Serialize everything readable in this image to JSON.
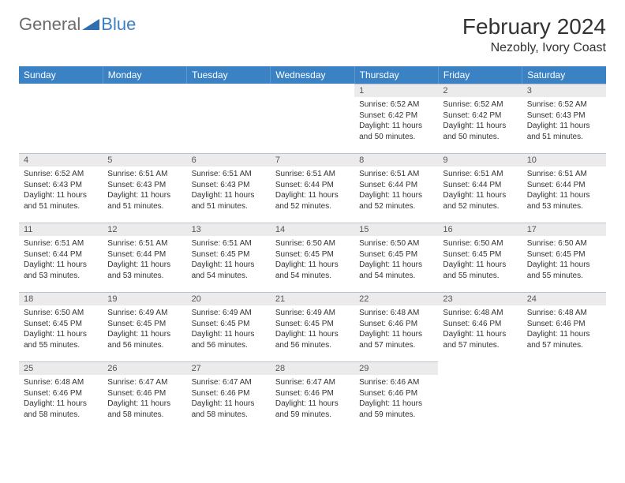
{
  "brand": {
    "text1": "General",
    "text2": "Blue"
  },
  "title": "February 2024",
  "location": "Nezobly, Ivory Coast",
  "colors": {
    "header_bg": "#3b82c4",
    "header_text": "#ffffff",
    "daynum_bg": "#ebebeb",
    "border": "#b8c4d0",
    "logo_gray": "#6b6b6b",
    "logo_blue": "#3b7fc4"
  },
  "weekdays": [
    "Sunday",
    "Monday",
    "Tuesday",
    "Wednesday",
    "Thursday",
    "Friday",
    "Saturday"
  ],
  "weeks": [
    [
      null,
      null,
      null,
      null,
      {
        "n": "1",
        "sr": "6:52 AM",
        "ss": "6:42 PM",
        "dl": "11 hours and 50 minutes."
      },
      {
        "n": "2",
        "sr": "6:52 AM",
        "ss": "6:42 PM",
        "dl": "11 hours and 50 minutes."
      },
      {
        "n": "3",
        "sr": "6:52 AM",
        "ss": "6:43 PM",
        "dl": "11 hours and 51 minutes."
      }
    ],
    [
      {
        "n": "4",
        "sr": "6:52 AM",
        "ss": "6:43 PM",
        "dl": "11 hours and 51 minutes."
      },
      {
        "n": "5",
        "sr": "6:51 AM",
        "ss": "6:43 PM",
        "dl": "11 hours and 51 minutes."
      },
      {
        "n": "6",
        "sr": "6:51 AM",
        "ss": "6:43 PM",
        "dl": "11 hours and 51 minutes."
      },
      {
        "n": "7",
        "sr": "6:51 AM",
        "ss": "6:44 PM",
        "dl": "11 hours and 52 minutes."
      },
      {
        "n": "8",
        "sr": "6:51 AM",
        "ss": "6:44 PM",
        "dl": "11 hours and 52 minutes."
      },
      {
        "n": "9",
        "sr": "6:51 AM",
        "ss": "6:44 PM",
        "dl": "11 hours and 52 minutes."
      },
      {
        "n": "10",
        "sr": "6:51 AM",
        "ss": "6:44 PM",
        "dl": "11 hours and 53 minutes."
      }
    ],
    [
      {
        "n": "11",
        "sr": "6:51 AM",
        "ss": "6:44 PM",
        "dl": "11 hours and 53 minutes."
      },
      {
        "n": "12",
        "sr": "6:51 AM",
        "ss": "6:44 PM",
        "dl": "11 hours and 53 minutes."
      },
      {
        "n": "13",
        "sr": "6:51 AM",
        "ss": "6:45 PM",
        "dl": "11 hours and 54 minutes."
      },
      {
        "n": "14",
        "sr": "6:50 AM",
        "ss": "6:45 PM",
        "dl": "11 hours and 54 minutes."
      },
      {
        "n": "15",
        "sr": "6:50 AM",
        "ss": "6:45 PM",
        "dl": "11 hours and 54 minutes."
      },
      {
        "n": "16",
        "sr": "6:50 AM",
        "ss": "6:45 PM",
        "dl": "11 hours and 55 minutes."
      },
      {
        "n": "17",
        "sr": "6:50 AM",
        "ss": "6:45 PM",
        "dl": "11 hours and 55 minutes."
      }
    ],
    [
      {
        "n": "18",
        "sr": "6:50 AM",
        "ss": "6:45 PM",
        "dl": "11 hours and 55 minutes."
      },
      {
        "n": "19",
        "sr": "6:49 AM",
        "ss": "6:45 PM",
        "dl": "11 hours and 56 minutes."
      },
      {
        "n": "20",
        "sr": "6:49 AM",
        "ss": "6:45 PM",
        "dl": "11 hours and 56 minutes."
      },
      {
        "n": "21",
        "sr": "6:49 AM",
        "ss": "6:45 PM",
        "dl": "11 hours and 56 minutes."
      },
      {
        "n": "22",
        "sr": "6:48 AM",
        "ss": "6:46 PM",
        "dl": "11 hours and 57 minutes."
      },
      {
        "n": "23",
        "sr": "6:48 AM",
        "ss": "6:46 PM",
        "dl": "11 hours and 57 minutes."
      },
      {
        "n": "24",
        "sr": "6:48 AM",
        "ss": "6:46 PM",
        "dl": "11 hours and 57 minutes."
      }
    ],
    [
      {
        "n": "25",
        "sr": "6:48 AM",
        "ss": "6:46 PM",
        "dl": "11 hours and 58 minutes."
      },
      {
        "n": "26",
        "sr": "6:47 AM",
        "ss": "6:46 PM",
        "dl": "11 hours and 58 minutes."
      },
      {
        "n": "27",
        "sr": "6:47 AM",
        "ss": "6:46 PM",
        "dl": "11 hours and 58 minutes."
      },
      {
        "n": "28",
        "sr": "6:47 AM",
        "ss": "6:46 PM",
        "dl": "11 hours and 59 minutes."
      },
      {
        "n": "29",
        "sr": "6:46 AM",
        "ss": "6:46 PM",
        "dl": "11 hours and 59 minutes."
      },
      null,
      null
    ]
  ],
  "labels": {
    "sunrise": "Sunrise:",
    "sunset": "Sunset:",
    "daylight": "Daylight:"
  }
}
